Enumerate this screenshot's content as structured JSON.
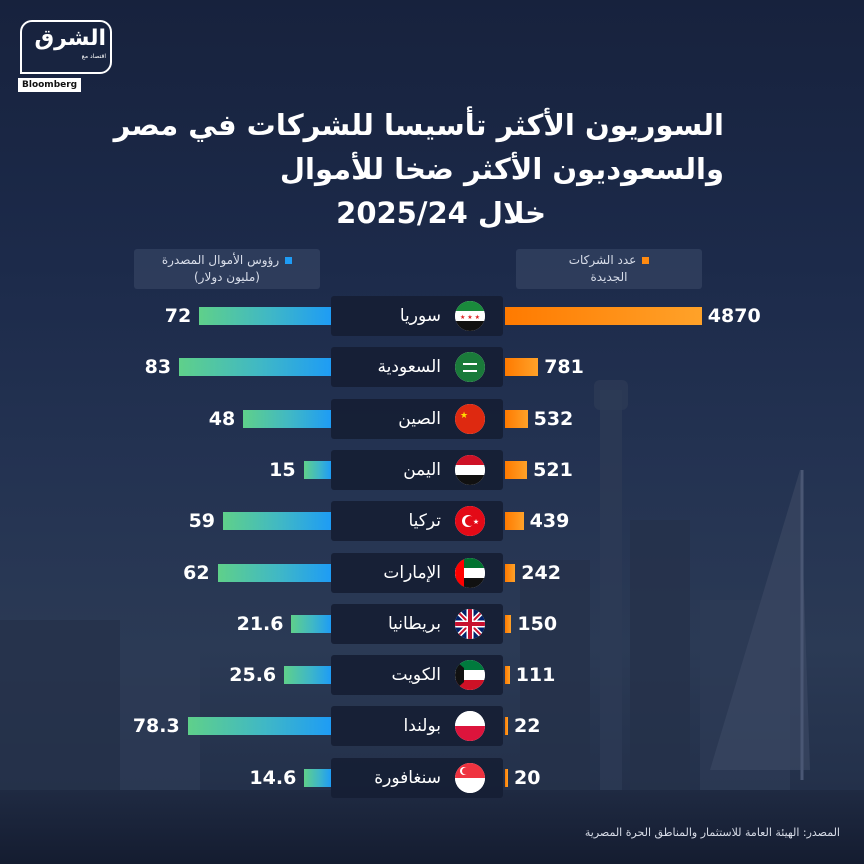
{
  "brand": {
    "logo_ar": "الشرق",
    "logo_sub": "اقتصاد مع",
    "logo_en": "Bloomberg"
  },
  "title_lines": [
    "السوريون الأكثر تأسيسا للشركات في مصر",
    "والسعوديون الأكثر ضخا للأموال",
    "خلال 2025/24"
  ],
  "colors": {
    "companies": "#ff8a10",
    "capital": "#1e9cf5"
  },
  "source": "المصدر: الهيئة العامة للاستثمار والمناطق الحرة المصرية",
  "chart_data": {
    "type": "bar",
    "title": "السوريون الأكثر تأسيسا للشركات في مصر والسعوديون الأكثر ضخا للأموال خلال 2025/24",
    "categories": [
      "سوريا",
      "السعودية",
      "الصين",
      "اليمن",
      "تركيا",
      "الإمارات",
      "بريطانيا",
      "الكويت",
      "بولندا",
      "سنغافورة"
    ],
    "series": [
      {
        "name": "عدد الشركات الجديدة",
        "legend_lines": [
          "عدد الشركات",
          "الجديدة"
        ],
        "values": [
          4870,
          781,
          532,
          521,
          439,
          242,
          150,
          111,
          22,
          20
        ],
        "labels": [
          "4870",
          "781",
          "532",
          "521",
          "439",
          "242",
          "150",
          "111",
          "22",
          "20"
        ]
      },
      {
        "name": "رؤوس الأموال المصدرة (مليون دولار)",
        "legend_lines": [
          "رؤوس الأموال المصدرة",
          "(مليون دولار)"
        ],
        "values": [
          72,
          83,
          48,
          15,
          59,
          62,
          21.6,
          25.6,
          78.3,
          14.6
        ],
        "labels": [
          "72",
          "83",
          "48",
          "15",
          "59",
          "62",
          "21.6",
          "25.6",
          "78.3",
          "14.6"
        ]
      }
    ],
    "flags": [
      "syria-flag",
      "saudi-flag",
      "china-flag",
      "yemen-flag",
      "turkey-flag",
      "uae-flag",
      "uk-flag",
      "kuwait-flag",
      "poland-flag",
      "singapore-flag"
    ]
  }
}
